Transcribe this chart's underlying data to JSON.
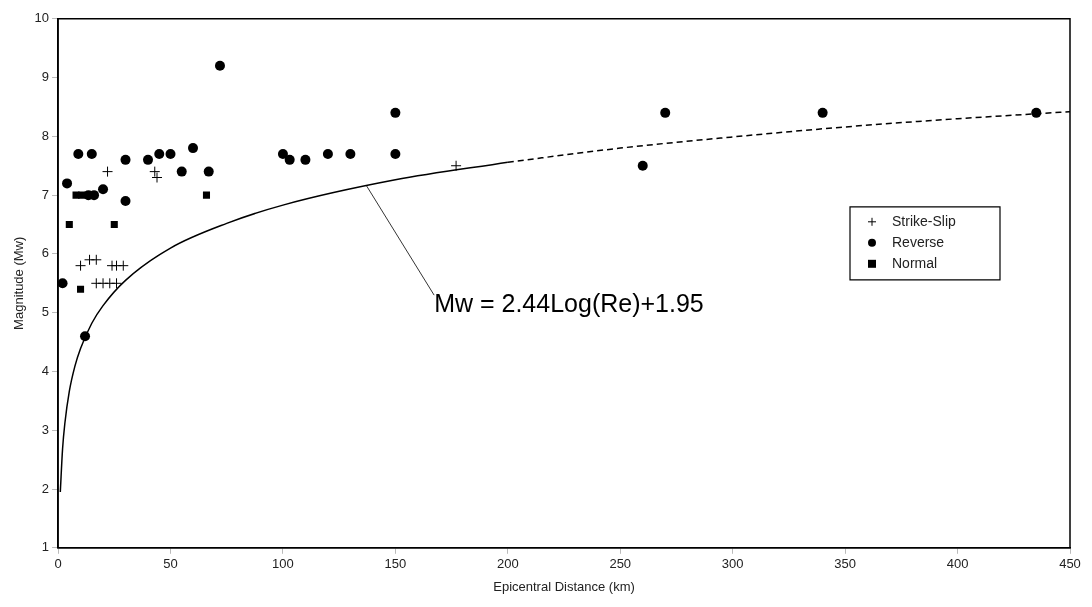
{
  "chart_data": {
    "type": "scatter",
    "xlabel": "Epicentral Distance (km)",
    "ylabel": "Magnitude (Mw)",
    "xlim": [
      0,
      450
    ],
    "xticks": [
      0,
      50,
      100,
      150,
      200,
      250,
      300,
      350,
      400,
      450
    ],
    "ylim": [
      1,
      10
    ],
    "yticks": [
      1,
      2,
      3,
      4,
      5,
      6,
      7,
      8,
      9,
      10
    ],
    "grid": false,
    "legend": "right",
    "series": [
      {
        "name": "Strike-Slip",
        "type": "scatter",
        "marker": "cross",
        "color": "#000000",
        "x": [
          22,
          43,
          44,
          10,
          14,
          17,
          17,
          20,
          23,
          26,
          24,
          26,
          29,
          177
        ],
        "values": [
          7.4,
          7.4,
          7.3,
          5.8,
          5.9,
          5.9,
          5.5,
          5.5,
          5.5,
          5.5,
          5.8,
          5.8,
          5.8,
          7.5
        ]
      },
      {
        "name": "Reverse",
        "type": "scatter",
        "marker": "circle",
        "color": "#000000",
        "x": [
          2,
          4,
          9,
          15,
          13.5,
          16,
          20,
          30,
          30,
          40,
          45,
          50,
          55,
          60,
          67,
          72,
          100,
          103,
          110,
          120,
          130,
          150,
          150,
          260,
          270,
          340,
          435,
          12
        ],
        "values": [
          5.5,
          7.2,
          7.7,
          7.7,
          7.0,
          7.0,
          7.1,
          7.6,
          6.9,
          7.6,
          7.7,
          7.7,
          7.4,
          7.8,
          7.4,
          9.2,
          7.7,
          7.6,
          7.6,
          7.7,
          7.7,
          8.4,
          7.7,
          7.5,
          8.4,
          8.4,
          8.4,
          4.6
        ]
      },
      {
        "name": "Normal",
        "type": "scatter",
        "marker": "square",
        "color": "#000000",
        "x": [
          5,
          8,
          10.5,
          10,
          25,
          66
        ],
        "values": [
          6.5,
          7.0,
          7.0,
          5.4,
          6.5,
          7.0
        ]
      },
      {
        "type": "line",
        "marker": "none",
        "line_style": "solid",
        "color": "#000000",
        "x": [
          1,
          2,
          3,
          5,
          7.5,
          10,
          15,
          20,
          30,
          50,
          75,
          100,
          150,
          200
        ],
        "values": [
          1.95,
          2.68,
          3.11,
          3.66,
          4.09,
          4.39,
          4.82,
          5.12,
          5.55,
          6.1,
          6.52,
          6.83,
          7.26,
          7.56
        ]
      },
      {
        "type": "line",
        "marker": "none",
        "line_style": "dashed",
        "color": "#000000",
        "x": [
          200,
          250,
          300,
          350,
          400,
          450
        ],
        "values": [
          7.56,
          7.8,
          7.99,
          8.16,
          8.3,
          8.42
        ]
      }
    ],
    "annotations": [
      {
        "text": "Mw = 2.44Log(Re)+1.95",
        "x": 137,
        "y": 7.17
      }
    ]
  }
}
